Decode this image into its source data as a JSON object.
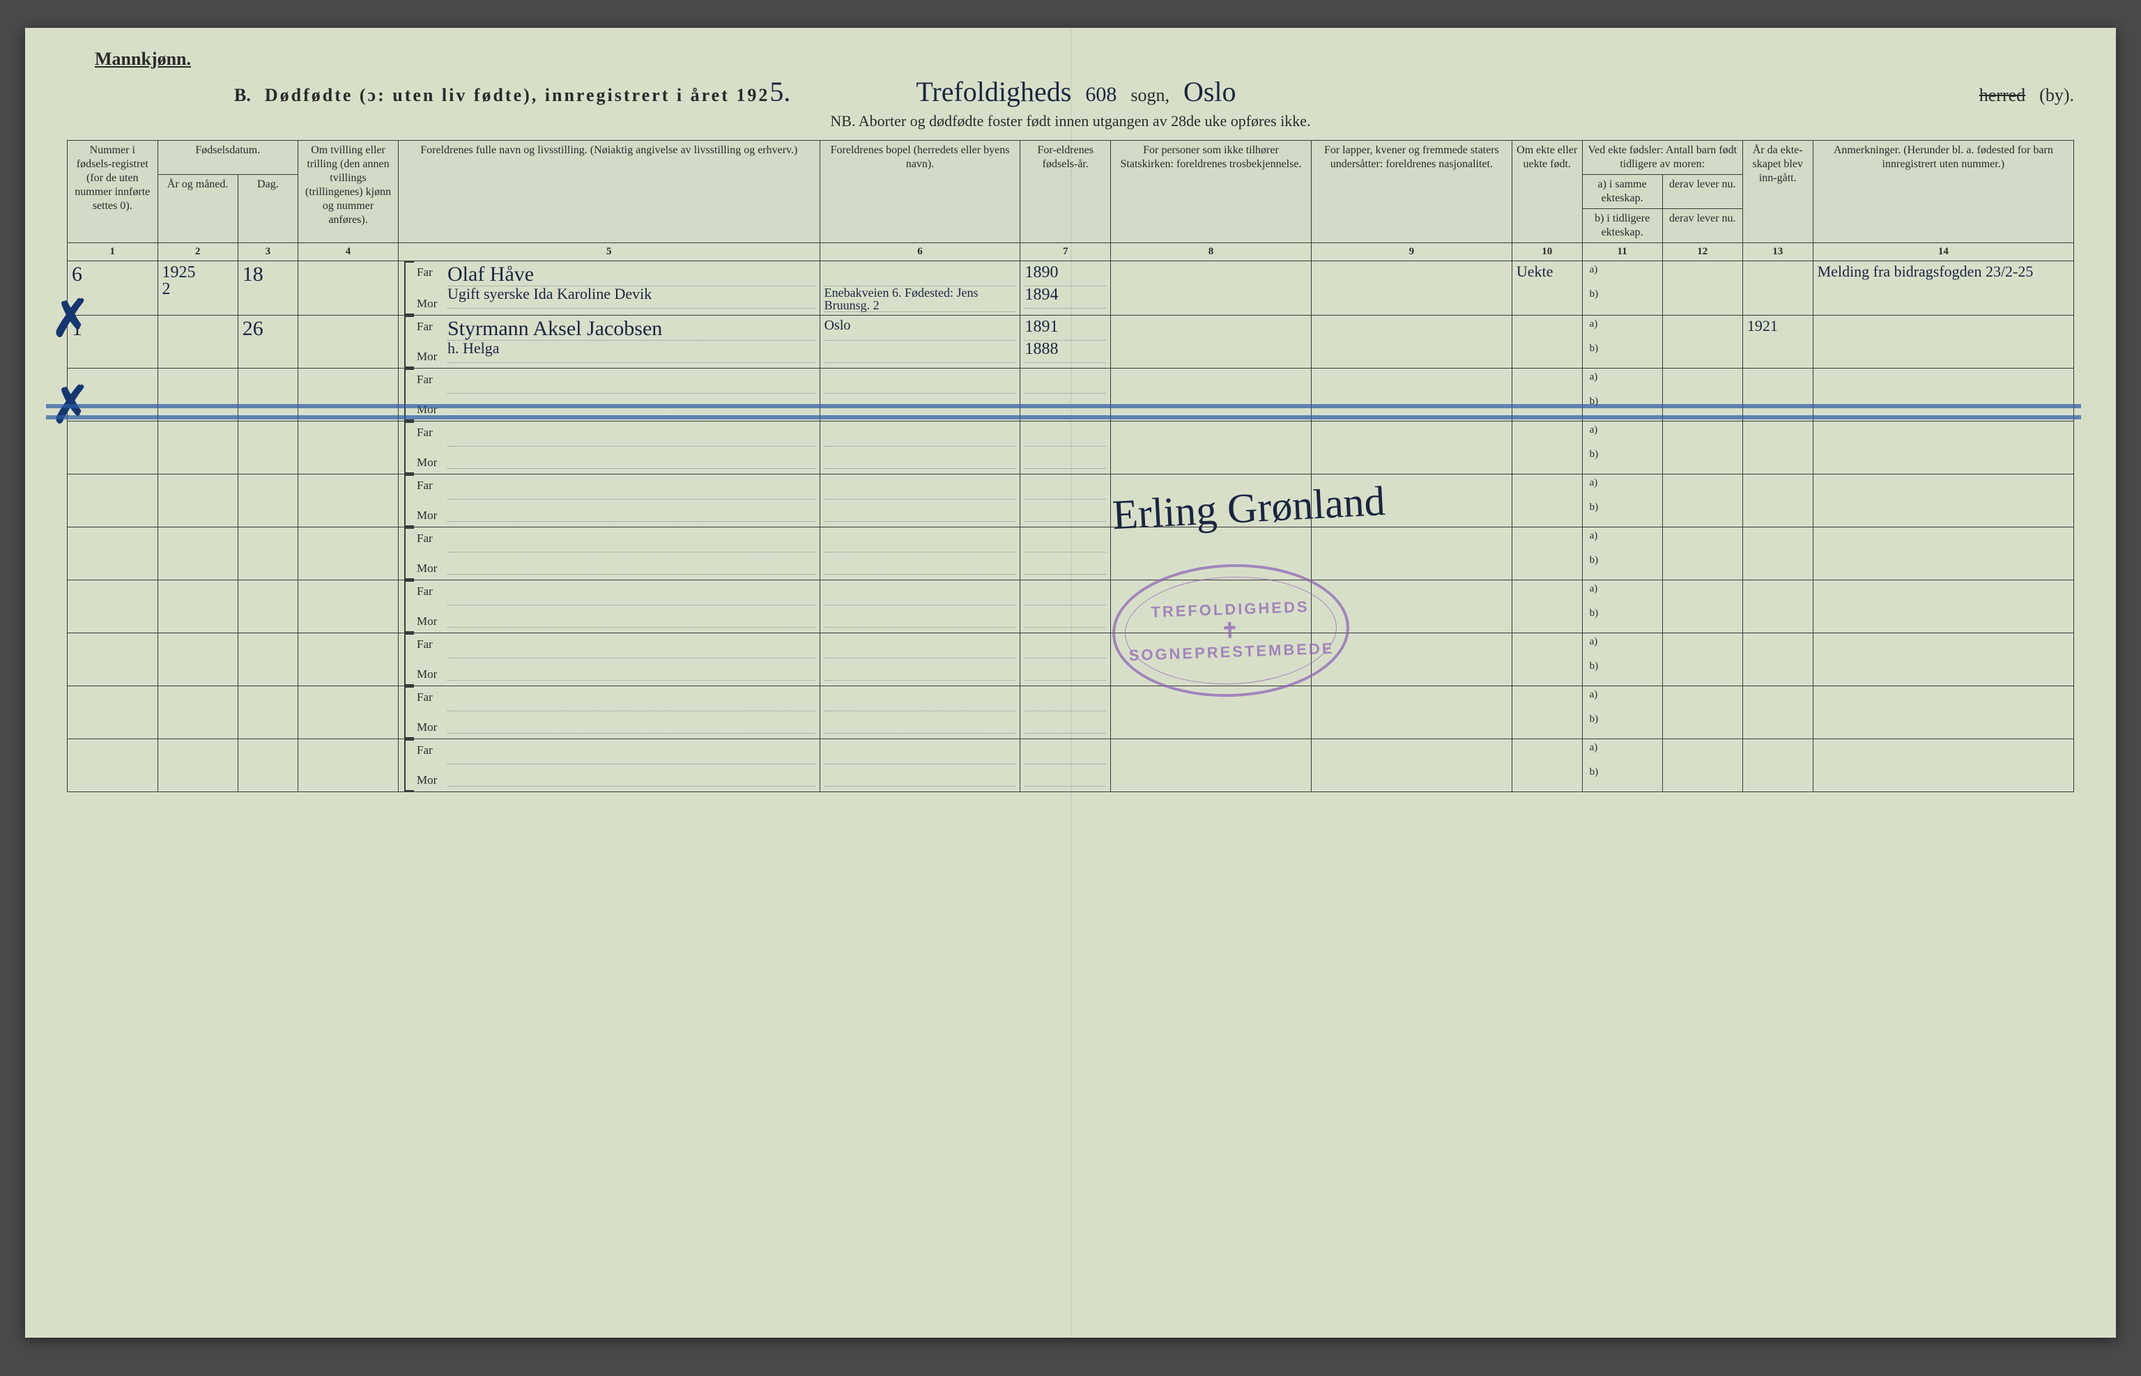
{
  "page": {
    "gender_label": "Mannkjønn.",
    "form_letter": "B.",
    "stillborn_title": "Dødfødte (ɔ: uten liv fødte), innregistrert i året 192",
    "year_suffix_hw": "5.",
    "parish_hw": "Trefoldigheds",
    "parish_no_hw": "608",
    "sogn_label": "sogn,",
    "city_hw": "Oslo",
    "herred_label": "herred",
    "by_label": "(by).",
    "nb_line": "NB. Aborter og dødfødte foster født innen utgangen av 28de uke opføres ikke."
  },
  "columns": {
    "c1": "Nummer i fødsels-registret (for de uten nummer innførte settes 0).",
    "c2_top": "Fødselsdatum.",
    "c2a": "År og måned.",
    "c2b": "Dag.",
    "c4": "Om tvilling eller trilling (den annen tvillings (trillingenes) kjønn og nummer anføres).",
    "c5": "Foreldrenes fulle navn og livsstilling. (Nøiaktig angivelse av livsstilling og erhverv.)",
    "c6": "Foreldrenes bopel (herredets eller byens navn).",
    "c7": "For-eldrenes fødsels-år.",
    "c8": "For personer som ikke tilhører Statskirken: foreldrenes trosbekjennelse.",
    "c9": "For lapper, kvener og fremmede staters undersåtter: foreldrenes nasjonalitet.",
    "c10": "Om ekte eller uekte født.",
    "c11_top": "Ved ekte fødsler: Antall barn født tidligere av moren:",
    "c11a": "a) i samme ekteskap.",
    "c11b": "b) i tidligere ekteskap.",
    "c12a": "derav lever nu.",
    "c12b": "derav lever nu.",
    "c13": "År da ekte-skapet blev inn-gått.",
    "c14": "Anmerkninger. (Herunder bl. a. fødested for barn innregistrert uten nummer.)"
  },
  "colnums": [
    "1",
    "2",
    "3",
    "4",
    "5",
    "6",
    "7",
    "8",
    "9",
    "10",
    "11",
    "12",
    "13",
    "14"
  ],
  "labels": {
    "far": "Far",
    "mor": "Mor",
    "a": "a)",
    "b": "b)"
  },
  "entries": [
    {
      "num": "6",
      "year_month": "1925 2",
      "day": "18",
      "far_name": "Olaf Håve",
      "mor_name": "Ugift syerske Ida Karoline Devik",
      "bopel_far": "",
      "bopel_mor": "Enebakveien 6. Fødested: Jens Bruunsg. 2",
      "year_far": "1890",
      "year_mor": "1894",
      "ekte": "Uekte",
      "remark": "Melding fra bidragsfogden 23/2-25",
      "check": true
    },
    {
      "num": "1",
      "year_month": "",
      "day": "26",
      "far_name": "Styrmann Aksel Jacobsen",
      "mor_name": "h. Helga",
      "bopel_far": "Oslo",
      "bopel_mor": "",
      "year_far": "1891",
      "year_mor": "1888",
      "ekte": "",
      "year_married": "1921",
      "remark": "",
      "check": true,
      "struck": true
    }
  ],
  "signature": "Erling Grønland",
  "stamp": {
    "top": "TREFOLDIGHEDS",
    "bottom": "SOGNEPRESTEMBEDE"
  },
  "styling": {
    "paper_bg": "#d8dfc9",
    "ink": "#2a2a2a",
    "handwriting_ink": "#1a2540",
    "strike_blue": "#2b5aa5",
    "stamp_violet": "#8a5fb5",
    "body_font": "Times New Roman",
    "script_font": "Brush Script MT"
  }
}
